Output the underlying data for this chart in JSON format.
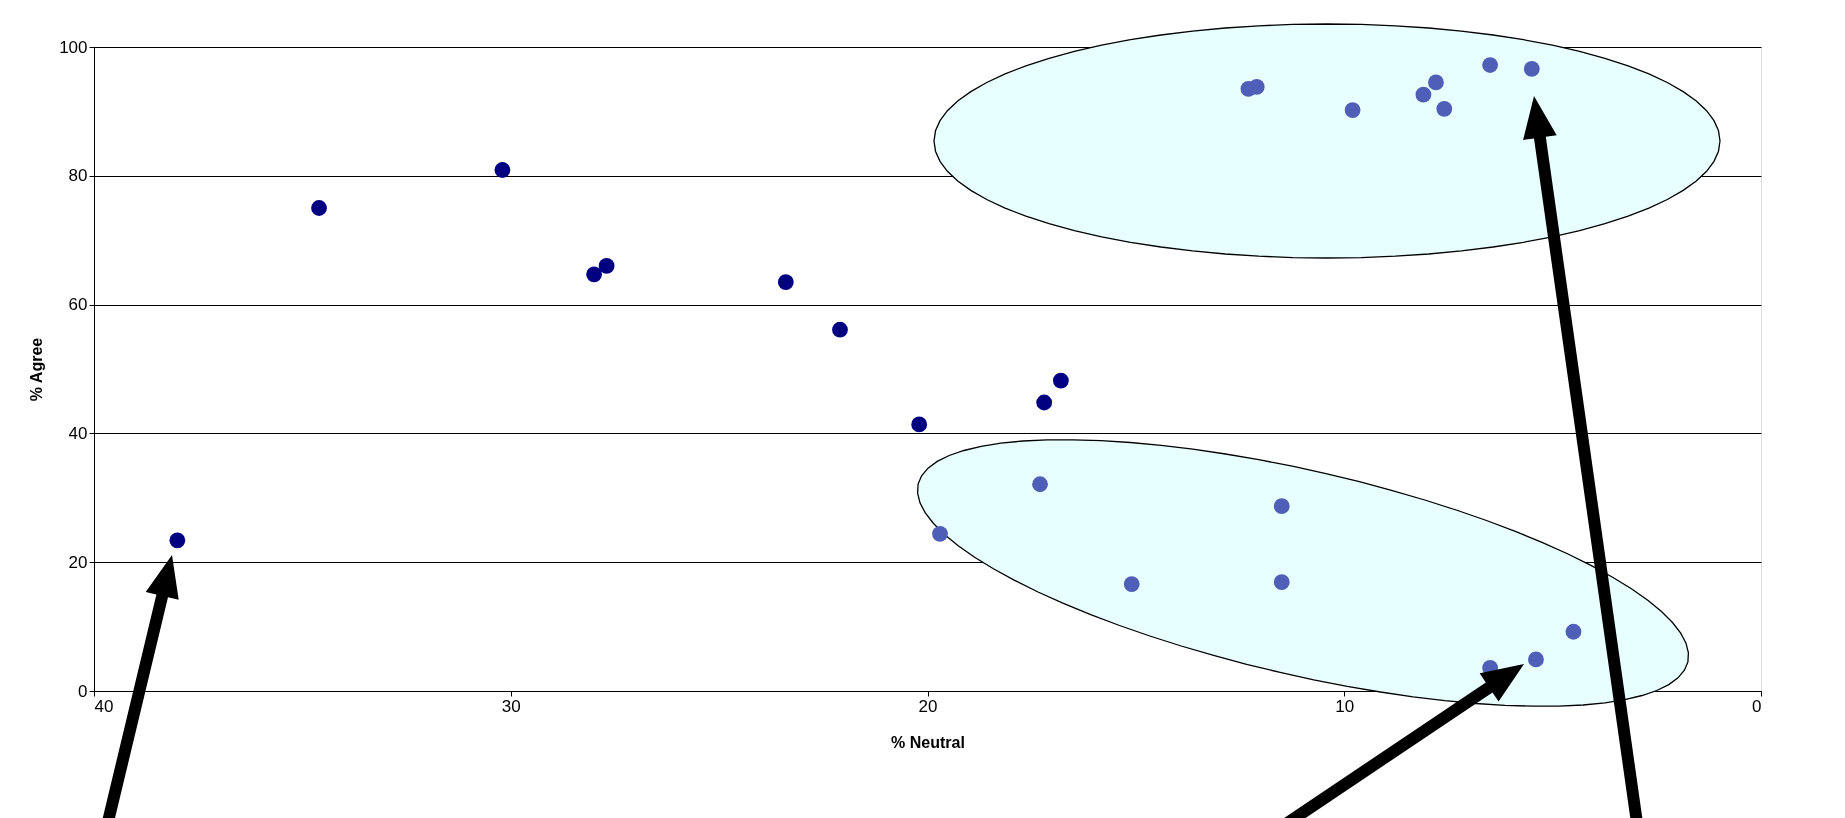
{
  "chart_data": {
    "type": "scatter",
    "xlabel": "% Neutral",
    "ylabel": "% Agree",
    "xlim": [
      40,
      0
    ],
    "xticks": [
      40,
      30,
      20,
      10,
      0
    ],
    "ylim": [
      0,
      100
    ],
    "yticks": [
      0,
      20,
      40,
      60,
      80,
      100
    ],
    "grid": "y",
    "marker": "circle",
    "legend": false,
    "series": [
      {
        "color": "#000080",
        "x": [
          38.0,
          34.6,
          30.2,
          28.0,
          27.7,
          23.4,
          22.1,
          20.2,
          16.8,
          17.2
        ],
        "values": [
          23.4,
          75.0,
          80.9,
          64.7,
          66.0,
          63.5,
          56.1,
          41.4,
          48.2,
          44.8
        ]
      },
      {
        "color": "#4f5fb8",
        "x": [
          12.3,
          12.1,
          9.8,
          8.1,
          7.8,
          7.6,
          6.5,
          5.5,
          17.3,
          19.7,
          11.5,
          15.1,
          11.5,
          4.5,
          5.4,
          6.5
        ],
        "values": [
          93.5,
          93.8,
          90.2,
          92.6,
          94.5,
          90.4,
          97.2,
          96.6,
          32.1,
          24.4,
          28.7,
          16.6,
          16.9,
          9.2,
          4.9,
          3.6
        ]
      }
    ]
  }
}
